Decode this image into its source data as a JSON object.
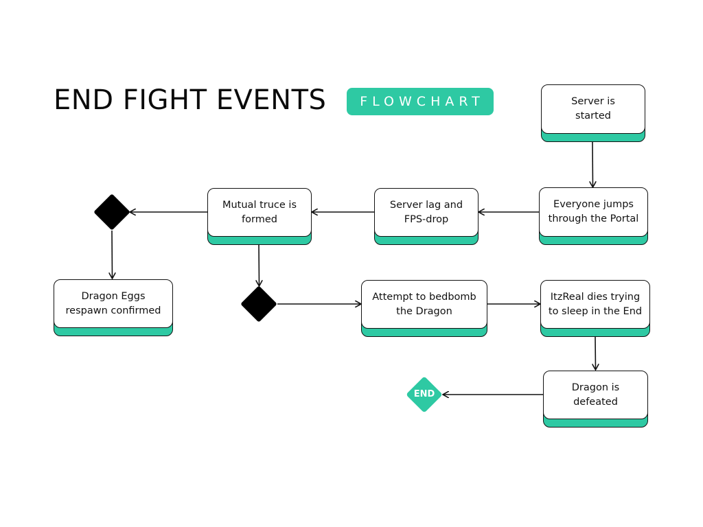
{
  "title": "END FIGHT EVENTS",
  "badge": "FLOWCHART",
  "accent_color": "#2ec9a3",
  "nodes": {
    "server_started": "Server is\nstarted",
    "everyone_jumps": "Everyone jumps\nthrough the Portal",
    "server_lag": "Server lag and\nFPS-drop",
    "mutual_truce": "Mutual truce is\nformed",
    "dragon_eggs": "Dragon Eggs\nrespawn confirmed",
    "attempt_bedbomb": "Attempt to bedbomb\nthe Dragon",
    "itzreal_dies": "ItzReal dies trying\nto sleep in the End",
    "dragon_defeated": "Dragon is\ndefeated"
  },
  "end_label": "END"
}
